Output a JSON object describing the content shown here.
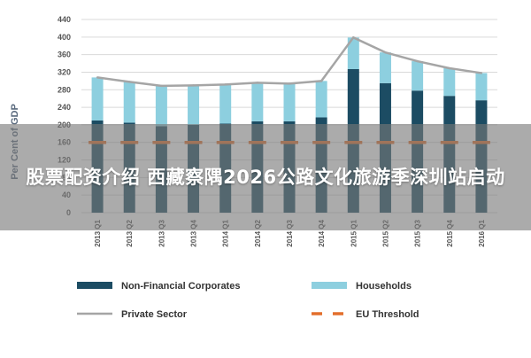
{
  "overlay": {
    "headline": "股票配资介绍 西藏察隅2026公路文化旅游季深圳站启动"
  },
  "chart_data": {
    "type": "bar",
    "stacked": true,
    "ylabel": "Per Cent of GDP",
    "ylim": [
      0,
      440
    ],
    "yticks": [
      0,
      40,
      80,
      120,
      160,
      200,
      240,
      280,
      320,
      360,
      400,
      440
    ],
    "grid": true,
    "legend_position": "bottom",
    "categories": [
      "2013 Q1",
      "2013 Q2",
      "2013 Q3",
      "2013 Q4",
      "2014 Q1",
      "2014 Q2",
      "2014 Q3",
      "2014 Q4",
      "2015 Q1",
      "2015 Q2",
      "2015 Q3",
      "2015 Q4",
      "2016 Q1"
    ],
    "series": [
      {
        "name": "Non-Financial Corporates",
        "kind": "bar",
        "color": "#1c4c63",
        "values": [
          210,
          205,
          197,
          200,
          203,
          208,
          208,
          217,
          327,
          295,
          278,
          266,
          256
        ]
      },
      {
        "name": "Households",
        "kind": "bar",
        "color": "#8dcfdf",
        "values": [
          98,
          93,
          92,
          90,
          89,
          88,
          86,
          83,
          72,
          70,
          67,
          63,
          62
        ]
      },
      {
        "name": "Private Sector",
        "kind": "line",
        "color": "#a5a5a5",
        "values": [
          308,
          298,
          289,
          290,
          292,
          296,
          294,
          300,
          399,
          365,
          345,
          329,
          318
        ]
      },
      {
        "name": "EU Threshold",
        "kind": "dashed",
        "color": "#e36f2c",
        "values": [
          160,
          160,
          160,
          160,
          160,
          160,
          160,
          160,
          160,
          160,
          160,
          160,
          160
        ]
      }
    ]
  }
}
